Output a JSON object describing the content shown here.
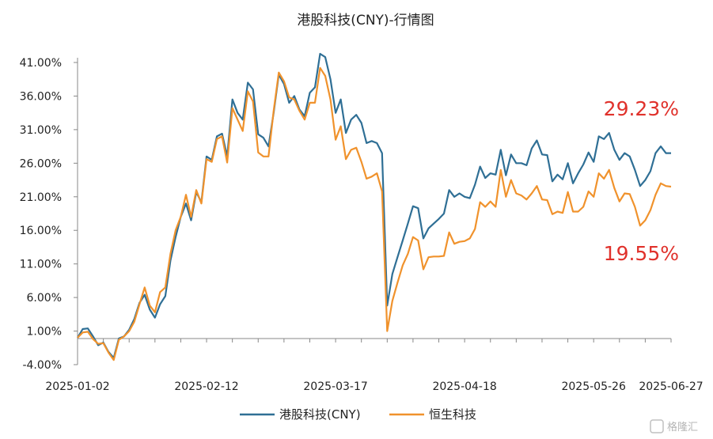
{
  "chart_data": {
    "type": "line",
    "title": "港股科技(CNY)-行情图",
    "y_ticks": [
      "41.00%",
      "36.00%",
      "31.00%",
      "26.00%",
      "21.00%",
      "16.00%",
      "11.00%",
      "6.00%",
      "1.00%",
      "-4.00%"
    ],
    "y_tick_values": [
      41,
      36,
      31,
      26,
      21,
      16,
      11,
      6,
      1,
      -4
    ],
    "ylim": [
      -4,
      41
    ],
    "x_ticks": [
      "2025-01-02",
      "2025-02-12",
      "2025-03-17",
      "2025-04-18",
      "2025-05-26",
      "2025-06-27"
    ],
    "x_tick_index": [
      0,
      25,
      50,
      75,
      100,
      125
    ],
    "legend_position": "bottom",
    "grid": false,
    "series": [
      {
        "name": "港股科技(CNY)",
        "color": "#2f6f95",
        "values": [
          0.0,
          1.3,
          1.4,
          0.2,
          -1.1,
          -0.7,
          -2.1,
          -3.0,
          -0.1,
          0.2,
          1.2,
          2.8,
          5.2,
          6.4,
          4.2,
          3.0,
          5.0,
          6.2,
          11.5,
          15.0,
          18.0,
          20.0,
          17.5,
          21.7,
          20.2,
          27.0,
          26.5,
          30.0,
          30.4,
          27.0,
          35.5,
          33.5,
          32.5,
          38.0,
          37.0,
          30.3,
          29.8,
          28.5,
          33.5,
          39.2,
          37.8,
          35.0,
          36.0,
          34.0,
          33.0,
          36.5,
          37.3,
          42.3,
          41.8,
          38.5,
          33.5,
          35.5,
          30.5,
          32.5,
          33.2,
          32.0,
          29.0,
          29.3,
          29.0,
          27.5,
          4.8,
          9.5,
          12.0,
          14.5,
          17.0,
          19.6,
          19.3,
          14.8,
          16.3,
          17.0,
          17.7,
          18.5,
          22.0,
          21.0,
          21.5,
          21.0,
          20.8,
          22.8,
          25.5,
          23.8,
          24.5,
          24.3,
          28.0,
          24.2,
          27.3,
          26.0,
          26.0,
          25.7,
          28.2,
          29.4,
          27.3,
          27.2,
          23.3,
          24.3,
          23.6,
          26.0,
          23.0,
          24.5,
          25.8,
          27.6,
          26.2,
          30.0,
          29.6,
          30.5,
          28.0,
          26.5,
          27.5,
          27.0,
          25.0,
          22.6,
          23.5,
          24.8,
          27.5,
          28.5,
          27.5,
          27.5
        ]
      },
      {
        "name": "恒生科技",
        "color": "#f0922c",
        "values": [
          0.0,
          0.8,
          0.9,
          -0.2,
          -0.9,
          -0.8,
          -2.2,
          -3.3,
          -0.3,
          0.2,
          1.0,
          2.4,
          5.0,
          7.5,
          4.8,
          3.8,
          6.8,
          7.5,
          12.5,
          16.0,
          18.0,
          21.3,
          18.0,
          22.0,
          20.0,
          26.6,
          26.2,
          29.6,
          30.0,
          26.1,
          34.2,
          32.5,
          30.8,
          36.7,
          35.2,
          27.6,
          27.0,
          27.0,
          33.8,
          39.5,
          38.2,
          35.8,
          35.5,
          33.8,
          32.5,
          35.0,
          35.0,
          40.2,
          39.0,
          35.5,
          29.5,
          31.5,
          26.6,
          28.0,
          28.3,
          26.2,
          23.7,
          24.0,
          24.5,
          21.8,
          1.0,
          5.5,
          8.2,
          10.8,
          12.5,
          15.0,
          14.5,
          10.2,
          12.0,
          12.1,
          12.1,
          12.2,
          15.7,
          14.0,
          14.3,
          14.4,
          14.8,
          16.2,
          20.2,
          19.5,
          20.3,
          19.5,
          25.0,
          21.0,
          23.5,
          21.5,
          21.2,
          20.6,
          21.5,
          22.6,
          20.6,
          20.5,
          18.4,
          18.8,
          18.6,
          21.7,
          18.8,
          18.8,
          19.5,
          21.8,
          21.0,
          24.5,
          23.7,
          25.0,
          22.3,
          20.3,
          21.5,
          21.4,
          19.5,
          16.7,
          17.5,
          19.0,
          21.3,
          23.0,
          22.6,
          22.5
        ]
      }
    ],
    "annotations": [
      {
        "text": "29.23%",
        "series": 0
      },
      {
        "text": "19.55%",
        "series": 1
      }
    ]
  },
  "watermark": "格隆汇"
}
